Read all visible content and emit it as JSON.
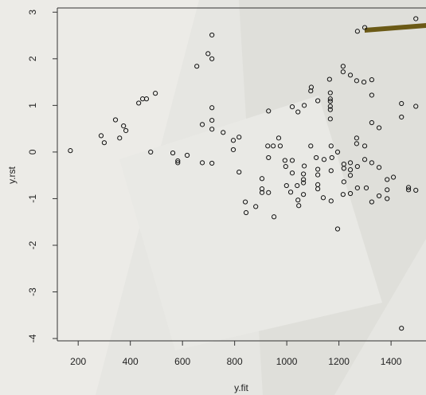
{
  "chart_data": {
    "type": "scatter",
    "x_label": "y.fit",
    "y_label": "y.rst",
    "color": "#111111",
    "xlim": [
      120,
      1534
    ],
    "ylim": [
      -4.05,
      3.09
    ],
    "xticks": [
      200,
      400,
      600,
      800,
      1000,
      1200,
      1400
    ],
    "yticks": [
      -4,
      -3,
      -2,
      -1,
      0,
      1,
      2,
      3
    ],
    "x": [
      170,
      288,
      300,
      343,
      359,
      374,
      383,
      432,
      447,
      462,
      478,
      496,
      563,
      582,
      582,
      618,
      655,
      676,
      676,
      698,
      713,
      713,
      713,
      713,
      713,
      713,
      756,
      795,
      795,
      817,
      817,
      841,
      844,
      881,
      905,
      905,
      905,
      927,
      930,
      930,
      930,
      948,
      951,
      969,
      975,
      993,
      996,
      1015,
      999,
      1021,
      1021,
      1021,
      1040,
      1043,
      1043,
      1046,
      1064,
      1064,
      1064,
      1064,
      1067,
      1067,
      1092,
      1092,
      1094,
      1113,
      1119,
      1119,
      1119,
      1119,
      1119,
      1140,
      1143,
      1164,
      1167,
      1167,
      1167,
      1167,
      1167,
      1167,
      1170,
      1173,
      1170,
      1170,
      1195,
      1195,
      1216,
      1216,
      1216,
      1219,
      1219,
      1219,
      1244,
      1244,
      1244,
      1244,
      1244,
      1268,
      1268,
      1268,
      1271,
      1271,
      1271,
      1299,
      1299,
      1299,
      1296,
      1305,
      1326,
      1326,
      1326,
      1326,
      1326,
      1354,
      1354,
      1354,
      1385,
      1385,
      1385,
      1409,
      1440,
      1440,
      1440,
      1467,
      1467,
      1495,
      1495,
      1495
    ],
    "values": [
      0.03,
      0.35,
      0.2,
      0.69,
      0.3,
      0.56,
      0.46,
      1.05,
      1.14,
      1.14,
      0.0,
      1.26,
      -0.02,
      -0.19,
      -0.23,
      -0.07,
      1.84,
      -0.23,
      0.59,
      2.11,
      2.51,
      2.0,
      0.95,
      0.68,
      0.49,
      -0.24,
      0.42,
      0.25,
      0.05,
      -0.43,
      0.32,
      -1.07,
      -1.3,
      -1.17,
      -0.57,
      -0.79,
      -0.87,
      0.13,
      0.88,
      -0.12,
      -0.87,
      0.13,
      -1.39,
      0.3,
      0.13,
      -0.18,
      -0.31,
      -0.86,
      -0.72,
      0.97,
      -0.18,
      -0.45,
      -0.72,
      0.86,
      -1.03,
      -1.15,
      -0.47,
      -0.59,
      -0.66,
      -0.91,
      1.0,
      -0.3,
      0.13,
      1.31,
      1.39,
      -0.12,
      -0.37,
      -0.49,
      -0.7,
      -0.79,
      1.1,
      -0.98,
      -0.16,
      1.56,
      1.27,
      1.14,
      1.09,
      0.98,
      0.91,
      0.71,
      0.13,
      -0.12,
      -0.4,
      -1.05,
      0.0,
      -1.65,
      -0.91,
      1.84,
      1.72,
      -0.26,
      -0.35,
      -0.64,
      -0.23,
      -0.38,
      -0.5,
      -0.89,
      1.65,
      1.53,
      0.3,
      0.18,
      -0.31,
      -0.77,
      2.59,
      2.67,
      0.13,
      -0.16,
      1.5,
      -0.77,
      1.55,
      1.22,
      0.63,
      -0.23,
      -1.07,
      0.52,
      -0.33,
      -0.94,
      -1.0,
      -0.59,
      -0.81,
      -0.54,
      1.04,
      0.75,
      -3.78,
      -0.76,
      -0.81,
      -0.82,
      0.98,
      2.86
    ]
  }
}
